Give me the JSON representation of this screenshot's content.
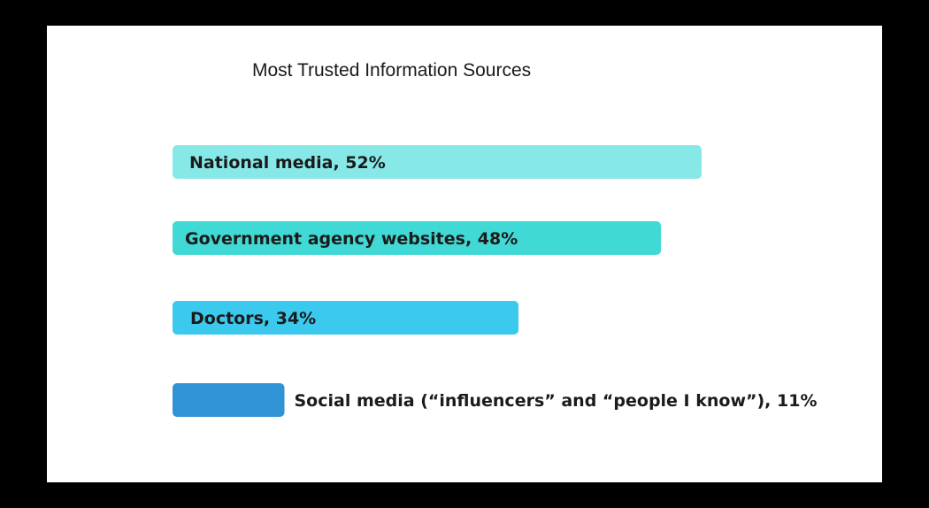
{
  "chart_data": {
    "type": "bar",
    "orientation": "horizontal",
    "title": "Most Trusted Information Sources",
    "categories": [
      "National media",
      "Government agency websites",
      "Doctors",
      "Social media (“influencers” and “people I know”)"
    ],
    "values": [
      52,
      48,
      34,
      11
    ],
    "labels": [
      "National media, 52%",
      "Government agency websites, 48%",
      "Doctors, 34%",
      "Social media (“influencers” and “people I know”), 11%"
    ],
    "unit": "%",
    "colors": [
      "#86e9e7",
      "#40d9d5",
      "#3bc9ee",
      "#2f93d6"
    ],
    "grid": false,
    "axes_visible": false
  }
}
